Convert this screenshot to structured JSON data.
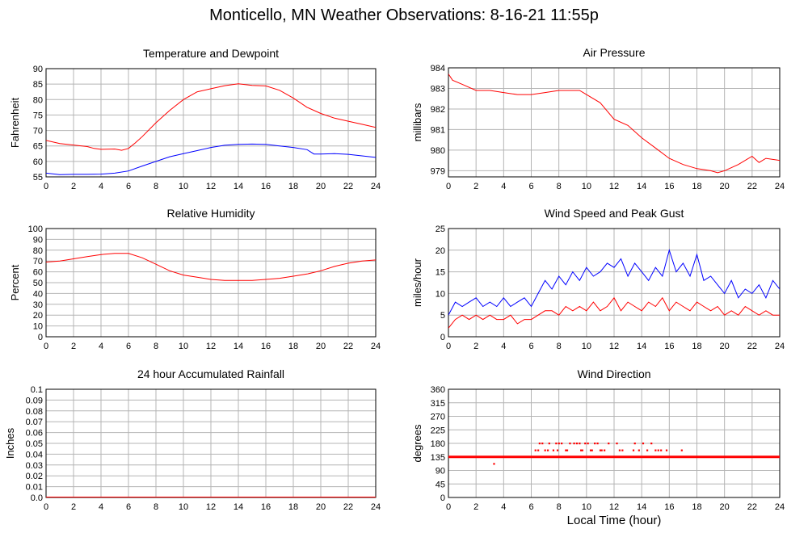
{
  "page": {
    "title": "Monticello, MN Weather Observations: 8-16-21 11:55p",
    "x_axis_title": "Local Time (hour)"
  },
  "colors": {
    "primary": "#ff0000",
    "secondary": "#0000ff",
    "grid": "#b4b4b4",
    "frame": "#000000"
  },
  "chart_data": [
    {
      "id": "temp",
      "type": "line",
      "title": "Temperature and Dewpoint",
      "ylabel": "Fahrenheit",
      "xlabel": "",
      "xlim": [
        0,
        24
      ],
      "ylim": [
        55,
        90
      ],
      "xticks": [
        0,
        2,
        4,
        6,
        8,
        10,
        12,
        14,
        16,
        18,
        20,
        22,
        24
      ],
      "yticks": [
        "55",
        "60",
        "65",
        "70",
        "75",
        "80",
        "85",
        "90"
      ],
      "grid": true,
      "series": [
        {
          "name": "",
          "color": "#ff0000",
          "x": [
            0,
            1,
            2,
            3,
            3.5,
            4,
            5,
            5.5,
            6,
            6.5,
            7,
            8,
            9,
            10,
            11,
            12,
            13,
            14,
            15,
            16,
            17,
            18,
            19,
            20,
            21,
            22,
            23,
            24
          ],
          "y": [
            66.8,
            65.8,
            65.3,
            64.8,
            64.2,
            63.9,
            64.0,
            63.6,
            64.2,
            66.0,
            68.0,
            72.5,
            76.5,
            80.0,
            82.5,
            83.5,
            84.5,
            85.1,
            84.6,
            84.4,
            83.0,
            80.5,
            77.5,
            75.5,
            74.0,
            73.0,
            72.0,
            71.0
          ]
        },
        {
          "name": "",
          "color": "#0000ff",
          "x": [
            0,
            1,
            2,
            3,
            4,
            5,
            6,
            7,
            8,
            9,
            10,
            11,
            12,
            13,
            14,
            15,
            16,
            17,
            18,
            19,
            19.5,
            20,
            21,
            22,
            23,
            24
          ],
          "y": [
            56.2,
            55.7,
            55.8,
            55.8,
            55.9,
            56.2,
            56.9,
            58.5,
            60.0,
            61.5,
            62.5,
            63.5,
            64.5,
            65.2,
            65.5,
            65.6,
            65.5,
            65.0,
            64.5,
            63.8,
            62.4,
            62.4,
            62.5,
            62.3,
            61.8,
            61.3
          ]
        }
      ]
    },
    {
      "id": "pressure",
      "type": "line",
      "title": "Air Pressure",
      "ylabel": "millibars",
      "xlabel": "",
      "xlim": [
        0,
        24
      ],
      "ylim": [
        978.7,
        984
      ],
      "xticks": [
        0,
        2,
        4,
        6,
        8,
        10,
        12,
        14,
        16,
        18,
        20,
        22,
        24
      ],
      "yticks": [
        "979",
        "980",
        "981",
        "982",
        "983",
        "984"
      ],
      "grid": true,
      "series": [
        {
          "name": "",
          "color": "#ff0000",
          "x": [
            0,
            0.3,
            1,
            2,
            3,
            4,
            5,
            6,
            7,
            8,
            9,
            9.5,
            10,
            11,
            12,
            13,
            14,
            15,
            16,
            17,
            18,
            19,
            19.5,
            20,
            21,
            22,
            22.5,
            23,
            24
          ],
          "y": [
            983.7,
            983.4,
            983.2,
            982.9,
            982.9,
            982.8,
            982.7,
            982.7,
            982.8,
            982.9,
            982.9,
            982.9,
            982.7,
            982.3,
            981.5,
            981.2,
            980.6,
            980.1,
            979.6,
            979.3,
            979.1,
            979.0,
            978.9,
            979.0,
            979.3,
            979.7,
            979.4,
            979.6,
            979.5
          ]
        }
      ]
    },
    {
      "id": "humidity",
      "type": "line",
      "title": "Relative Humidity",
      "ylabel": "Percent",
      "xlabel": "",
      "xlim": [
        0,
        24
      ],
      "ylim": [
        0,
        100
      ],
      "xticks": [
        0,
        2,
        4,
        6,
        8,
        10,
        12,
        14,
        16,
        18,
        20,
        22,
        24
      ],
      "yticks": [
        "0",
        "10",
        "20",
        "30",
        "40",
        "50",
        "60",
        "70",
        "80",
        "90",
        "100"
      ],
      "grid": true,
      "series": [
        {
          "name": "",
          "color": "#ff0000",
          "x": [
            0,
            1,
            2,
            3,
            4,
            5,
            6,
            7,
            8,
            9,
            10,
            11,
            12,
            13,
            14,
            15,
            16,
            17,
            18,
            19,
            20,
            21,
            22,
            23,
            24
          ],
          "y": [
            69,
            70,
            72,
            74,
            76,
            77,
            77,
            73,
            67,
            61,
            57,
            55,
            53,
            52,
            52,
            52,
            53,
            54,
            56,
            58,
            61,
            65,
            68,
            70,
            71
          ]
        }
      ]
    },
    {
      "id": "wind",
      "type": "line",
      "title": "Wind Speed and Peak Gust",
      "ylabel": "miles/hour",
      "xlabel": "",
      "xlim": [
        0,
        24
      ],
      "ylim": [
        0,
        25
      ],
      "xticks": [
        0,
        2,
        4,
        6,
        8,
        10,
        12,
        14,
        16,
        18,
        20,
        22,
        24
      ],
      "yticks": [
        "0",
        "5",
        "10",
        "15",
        "20",
        "25"
      ],
      "grid": true,
      "series": [
        {
          "name": "",
          "color": "#0000ff",
          "x": [
            0,
            0.5,
            1,
            1.5,
            2,
            2.5,
            3,
            3.5,
            4,
            4.5,
            5,
            5.5,
            6,
            6.5,
            7,
            7.5,
            8,
            8.5,
            9,
            9.5,
            10,
            10.5,
            11,
            11.5,
            12,
            12.5,
            13,
            13.5,
            14,
            14.5,
            15,
            15.5,
            16,
            16.5,
            17,
            17.5,
            18,
            18.5,
            19,
            19.5,
            20,
            20.5,
            21,
            21.5,
            22,
            22.5,
            23,
            23.5,
            24
          ],
          "y": [
            5,
            8,
            7,
            8,
            9,
            7,
            8,
            7,
            9,
            7,
            8,
            9,
            7,
            10,
            13,
            11,
            14,
            12,
            15,
            13,
            16,
            14,
            15,
            17,
            16,
            18,
            14,
            17,
            15,
            13,
            16,
            14,
            20,
            15,
            17,
            14,
            19,
            13,
            14,
            12,
            10,
            13,
            9,
            11,
            10,
            12,
            9,
            13,
            11
          ]
        },
        {
          "name": "",
          "color": "#ff0000",
          "x": [
            0,
            0.5,
            1,
            1.5,
            2,
            2.5,
            3,
            3.5,
            4,
            4.5,
            5,
            5.5,
            6,
            6.5,
            7,
            7.5,
            8,
            8.5,
            9,
            9.5,
            10,
            10.5,
            11,
            11.5,
            12,
            12.5,
            13,
            13.5,
            14,
            14.5,
            15,
            15.5,
            16,
            16.5,
            17,
            17.5,
            18,
            18.5,
            19,
            19.5,
            20,
            20.5,
            21,
            21.5,
            22,
            22.5,
            23,
            23.5,
            24
          ],
          "y": [
            2,
            4,
            5,
            4,
            5,
            4,
            5,
            4,
            4,
            5,
            3,
            4,
            4,
            5,
            6,
            6,
            5,
            7,
            6,
            7,
            6,
            8,
            6,
            7,
            9,
            6,
            8,
            7,
            6,
            8,
            7,
            9,
            6,
            8,
            7,
            6,
            8,
            7,
            6,
            7,
            5,
            6,
            5,
            7,
            6,
            5,
            6,
            5,
            5
          ]
        }
      ]
    },
    {
      "id": "rain",
      "type": "line",
      "title": "24 hour Accumulated Rainfall",
      "ylabel": "Inches",
      "xlabel": "",
      "xlim": [
        0,
        24
      ],
      "ylim": [
        0,
        0.1
      ],
      "xticks": [
        0,
        2,
        4,
        6,
        8,
        10,
        12,
        14,
        16,
        18,
        20,
        22,
        24
      ],
      "yticks": [
        "0.0",
        "0.01",
        "0.02",
        "0.03",
        "0.04",
        "0.05",
        "0.06",
        "0.07",
        "0.08",
        "0.09",
        "0.1"
      ],
      "grid": true,
      "series": [
        {
          "name": "",
          "color": "#ff0000",
          "x": [
            0,
            24
          ],
          "y": [
            0,
            0
          ]
        }
      ]
    },
    {
      "id": "winddir",
      "type": "scatter",
      "title": "Wind Direction",
      "ylabel": "degrees",
      "xlabel": "Local Time (hour)",
      "xlim": [
        0,
        24
      ],
      "ylim": [
        0,
        360
      ],
      "xticks": [
        0,
        2,
        4,
        6,
        8,
        10,
        12,
        14,
        16,
        18,
        20,
        22,
        24
      ],
      "yticks": [
        "0",
        "45",
        "90",
        "135",
        "180",
        "225",
        "270",
        "315",
        "360"
      ],
      "grid": true,
      "constant_band": {
        "y": 135,
        "x_range": [
          0,
          24
        ],
        "color": "#ff0000"
      },
      "series": [
        {
          "name": "",
          "color": "#ff0000",
          "x": [
            3.3,
            6.3,
            6.6,
            6.8,
            7.0,
            7.3,
            7.6,
            7.8,
            8.0,
            8.2,
            8.5,
            8.8,
            9.1,
            9.3,
            9.5,
            9.7,
            9.9,
            10.1,
            10.3,
            10.6,
            10.8,
            11.0,
            11.3,
            11.6,
            12.2,
            12.6,
            13.5,
            13.8,
            14.1,
            14.7,
            15.0,
            15.4,
            15.8,
            16.9,
            6.5,
            7.2,
            7.9,
            8.6,
            9.6,
            10.4,
            11.1,
            12.4,
            13.4,
            14.4,
            15.2
          ],
          "y": [
            112,
            157,
            180,
            180,
            157,
            180,
            157,
            180,
            180,
            180,
            157,
            180,
            180,
            180,
            180,
            157,
            180,
            180,
            157,
            180,
            180,
            157,
            157,
            180,
            180,
            157,
            180,
            157,
            180,
            180,
            157,
            157,
            157,
            157,
            157,
            157,
            157,
            157,
            157,
            157,
            157,
            157,
            157,
            157,
            157
          ]
        }
      ]
    }
  ]
}
